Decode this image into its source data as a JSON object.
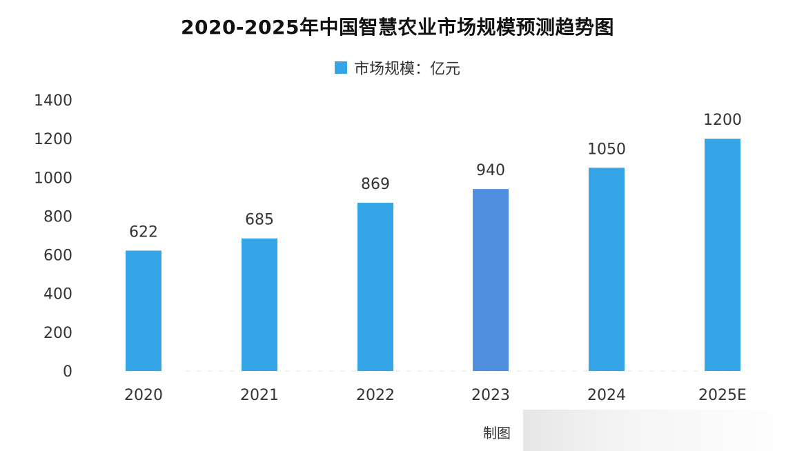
{
  "chart_data": {
    "type": "bar",
    "title": "2020-2025年中国智慧农业市场规模预测趋势图",
    "legend": "市场规模：亿元",
    "categories": [
      "2020",
      "2021",
      "2022",
      "2023",
      "2024",
      "2025E"
    ],
    "series": [
      {
        "name": "市场规模：亿元",
        "values": [
          622,
          685,
          869,
          940,
          1050,
          1200
        ]
      }
    ],
    "ylim": [
      0,
      1400
    ],
    "yticks": [
      0,
      200,
      400,
      600,
      800,
      1000,
      1200,
      1400
    ],
    "grid": false,
    "legend_position": "top-center",
    "colors": {
      "bar": "#35a5e8",
      "bar_highlight": "#4f8fe0"
    }
  },
  "footer": {
    "text": "制图"
  }
}
